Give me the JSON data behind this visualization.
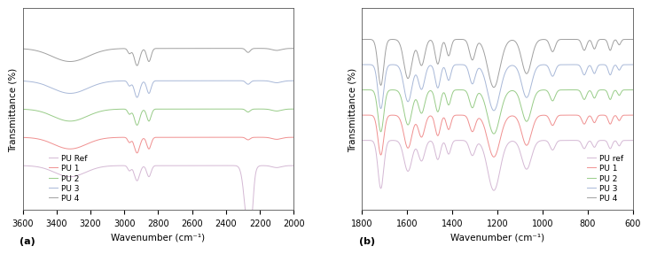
{
  "panel_a": {
    "xlabel": "Wavenumber (cm⁻¹)",
    "ylabel": "Transmittance (%)",
    "label": "(a)",
    "legend_labels": [
      "PU Ref",
      "PU 1",
      "PU 2",
      "PU 3",
      "PU 4"
    ],
    "colors": [
      "#d4b8d4",
      "#f09090",
      "#98cc88",
      "#a8b8d8",
      "#a0a0a0"
    ],
    "xticks": [
      3600,
      3400,
      3200,
      3000,
      2800,
      2600,
      2400,
      2200,
      2000
    ],
    "xlim": [
      3600,
      2000
    ]
  },
  "panel_b": {
    "xlabel": "Wavenumber (cm⁻¹)",
    "ylabel": "Transmittance (%)",
    "label": "(b)",
    "legend_labels": [
      "PU ref",
      "PU 1",
      "PU 2",
      "PU 3",
      "PU 4"
    ],
    "colors": [
      "#d4b8d4",
      "#f09090",
      "#98cc88",
      "#a8b8d8",
      "#a0a0a0"
    ],
    "xticks": [
      1800,
      1600,
      1400,
      1200,
      1000,
      800,
      600
    ],
    "xlim": [
      1800,
      600
    ]
  },
  "fig_bg": "#ffffff",
  "axes_bg": "#ffffff",
  "tick_fontsize": 7,
  "label_fontsize": 7.5,
  "legend_fontsize": 6.5
}
